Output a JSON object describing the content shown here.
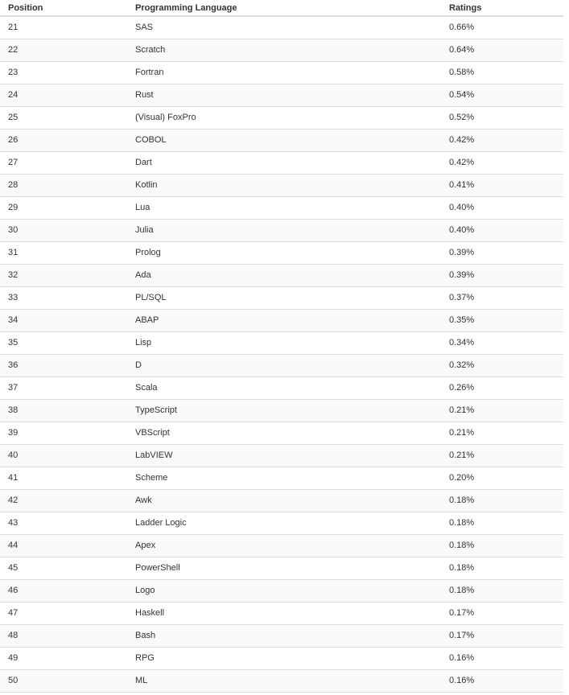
{
  "table": {
    "headers": [
      "Position",
      "Programming Language",
      "Ratings"
    ],
    "rows": [
      [
        "21",
        "SAS",
        "0.66%"
      ],
      [
        "22",
        "Scratch",
        "0.64%"
      ],
      [
        "23",
        "Fortran",
        "0.58%"
      ],
      [
        "24",
        "Rust",
        "0.54%"
      ],
      [
        "25",
        "(Visual) FoxPro",
        "0.52%"
      ],
      [
        "26",
        "COBOL",
        "0.42%"
      ],
      [
        "27",
        "Dart",
        "0.42%"
      ],
      [
        "28",
        "Kotlin",
        "0.41%"
      ],
      [
        "29",
        "Lua",
        "0.40%"
      ],
      [
        "30",
        "Julia",
        "0.40%"
      ],
      [
        "31",
        "Prolog",
        "0.39%"
      ],
      [
        "32",
        "Ada",
        "0.39%"
      ],
      [
        "33",
        "PL/SQL",
        "0.37%"
      ],
      [
        "34",
        "ABAP",
        "0.35%"
      ],
      [
        "35",
        "Lisp",
        "0.34%"
      ],
      [
        "36",
        "D",
        "0.32%"
      ],
      [
        "37",
        "Scala",
        "0.26%"
      ],
      [
        "38",
        "TypeScript",
        "0.21%"
      ],
      [
        "39",
        "VBScript",
        "0.21%"
      ],
      [
        "40",
        "LabVIEW",
        "0.21%"
      ],
      [
        "41",
        "Scheme",
        "0.20%"
      ],
      [
        "42",
        "Awk",
        "0.18%"
      ],
      [
        "43",
        "Ladder Logic",
        "0.18%"
      ],
      [
        "44",
        "Apex",
        "0.18%"
      ],
      [
        "45",
        "PowerShell",
        "0.18%"
      ],
      [
        "46",
        "Logo",
        "0.18%"
      ],
      [
        "47",
        "Haskell",
        "0.17%"
      ],
      [
        "48",
        "Bash",
        "0.17%"
      ],
      [
        "49",
        "RPG",
        "0.16%"
      ],
      [
        "50",
        "ML",
        "0.16%"
      ]
    ]
  }
}
